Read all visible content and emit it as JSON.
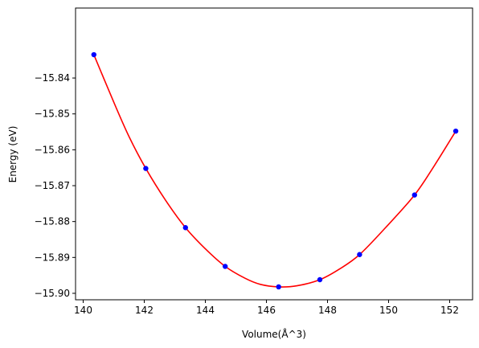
{
  "chart_data": {
    "type": "scatter",
    "title": "",
    "xlabel": "Volume(Å^3)",
    "ylabel": "Energy (eV)",
    "xlim": [
      139.75,
      152.75
    ],
    "ylim": [
      -15.9018,
      -15.8205
    ],
    "x_ticks": [
      140,
      142,
      144,
      146,
      148,
      150,
      152
    ],
    "x_tick_labels": [
      "140",
      "142",
      "144",
      "146",
      "148",
      "150",
      "152"
    ],
    "y_ticks": [
      -15.84,
      -15.85,
      -15.86,
      -15.87,
      -15.88,
      -15.89,
      -15.9
    ],
    "y_tick_labels": [
      "−15.84",
      "−15.85",
      "−15.86",
      "−15.87",
      "−15.88",
      "−15.89",
      "−15.90"
    ],
    "grid": false,
    "series": [
      {
        "kind": "points",
        "color": "#0000ff",
        "x": [
          140.35,
          142.05,
          143.35,
          144.65,
          146.4,
          147.75,
          149.05,
          150.85,
          152.2
        ],
        "y": [
          -15.8335,
          -15.8652,
          -15.8817,
          -15.8925,
          -15.8982,
          -15.8962,
          -15.8892,
          -15.8726,
          -15.8548
        ]
      },
      {
        "kind": "fit-curve",
        "color": "#ff0000",
        "x": [
          140.35,
          141.0,
          141.5,
          142.05,
          142.7,
          143.35,
          144.0,
          144.65,
          145.3,
          145.8,
          146.4,
          147.0,
          147.75,
          148.4,
          149.05,
          149.9,
          150.85,
          151.5,
          152.2
        ],
        "y": [
          -15.8335,
          -15.8467,
          -15.8563,
          -15.8652,
          -15.8741,
          -15.8817,
          -15.8876,
          -15.8925,
          -15.8958,
          -15.8975,
          -15.8982,
          -15.8979,
          -15.8962,
          -15.8932,
          -15.8892,
          -15.8817,
          -15.8726,
          -15.8644,
          -15.8548
        ]
      }
    ]
  }
}
